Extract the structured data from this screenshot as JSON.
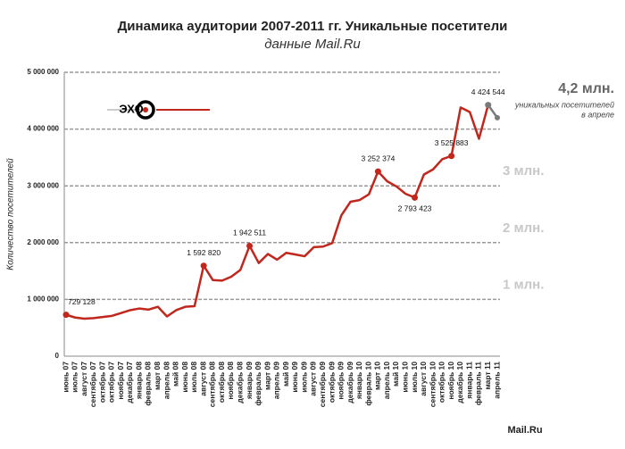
{
  "chart_data": {
    "type": "line",
    "title": "Динамика аудитории 2007-2011 гг. Уникальные посетители",
    "subtitle": "данные Mail.Ru",
    "y_label": "Количество посетителей",
    "logo": "ЭХО",
    "footer": "Mail.Ru",
    "categories": [
      "июнь 07",
      "июль 07",
      "август 07",
      "сентябрь 07",
      "октябрь 07",
      "октябрь 07",
      "ноябрь 07",
      "декабрь 07",
      "январь 08",
      "февраль 08",
      "март 08",
      "апрель 08",
      "май 08",
      "июнь 08",
      "июль 08",
      "август 08",
      "сентябрь 08",
      "октябрь 08",
      "ноябрь 08",
      "декабрь 08",
      "январь 09",
      "февраль 09",
      "март 09",
      "апрель 09",
      "май 09",
      "июнь 09",
      "июль 09",
      "август 09",
      "сентябрь 09",
      "октябрь 09",
      "ноябрь 09",
      "декабрь 09",
      "январь 10",
      "февраль 10",
      "март 10",
      "апрель 10",
      "май 10",
      "июнь 10",
      "июль 10",
      "август 10",
      "сентябрь 10",
      "октябрь 10",
      "ноябрь 10",
      "декабрь 10",
      "январь 11",
      "февраль 11",
      "март 11",
      "апрель 11"
    ],
    "series": [
      {
        "name": "Уникальные посетители",
        "color": "#c0271d",
        "last_segment_color": "#7a7a7a",
        "values": [
          729128,
          680000,
          660000,
          670000,
          690000,
          710000,
          760000,
          810000,
          840000,
          820000,
          870000,
          700000,
          810000,
          870000,
          880000,
          1592820,
          1340000,
          1330000,
          1400000,
          1520000,
          1942511,
          1640000,
          1800000,
          1700000,
          1820000,
          1790000,
          1760000,
          1920000,
          1930000,
          1990000,
          2480000,
          2720000,
          2750000,
          2850000,
          3252374,
          3080000,
          2990000,
          2860000,
          2793423,
          3200000,
          3290000,
          3470000,
          3525883,
          4380000,
          4300000,
          3830000,
          4424544,
          4200000
        ],
        "value_labels": [
          "729 128",
          null,
          null,
          null,
          null,
          null,
          null,
          null,
          null,
          null,
          null,
          null,
          null,
          null,
          null,
          "1 592 820",
          null,
          null,
          null,
          null,
          "1 942 511",
          null,
          null,
          null,
          null,
          null,
          null,
          null,
          null,
          null,
          null,
          null,
          null,
          null,
          "3 252 374",
          null,
          null,
          null,
          "2 793 423",
          null,
          null,
          null,
          "3 525 883",
          null,
          null,
          null,
          "4 424 544",
          null
        ]
      }
    ],
    "ylim": [
      0,
      5000000
    ],
    "yticks": [
      {
        "value": 0,
        "label": "0"
      },
      {
        "value": 1000000,
        "label": "1 000 000"
      },
      {
        "value": 2000000,
        "label": "2 000 000"
      },
      {
        "value": 3000000,
        "label": "3 000 000"
      },
      {
        "value": 4000000,
        "label": "4 000 000"
      },
      {
        "value": 5000000,
        "label": "5 000 000"
      }
    ],
    "grid": true,
    "level_annotations": [
      {
        "value": 1000000,
        "label": "1 млн."
      },
      {
        "value": 2000000,
        "label": "2 млн."
      },
      {
        "value": 3000000,
        "label": "3 млн."
      }
    ],
    "highlight": {
      "label": "4,2 млн.",
      "text_lines": [
        "уникальных посетителей",
        "в апреле"
      ]
    }
  }
}
